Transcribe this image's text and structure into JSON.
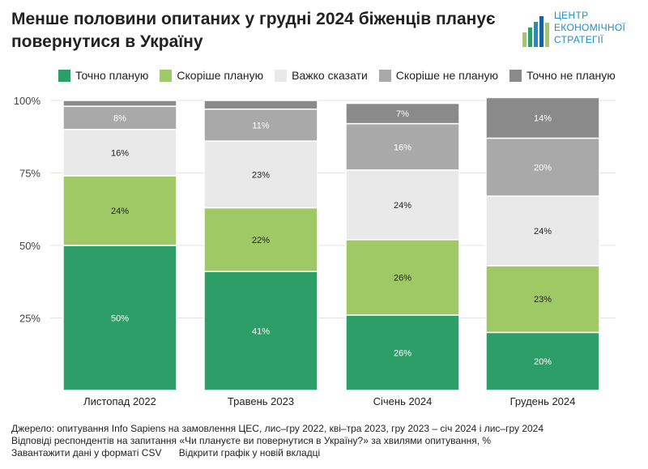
{
  "header": {
    "title": "Менше половини опитаних у грудні 2024 біженців планує повернутися в Україну"
  },
  "logo": {
    "lines": [
      "ЦЕНТР",
      "ЕКОНОМІЧНОЇ",
      "СТРАТЕГІЇ"
    ]
  },
  "footer": {
    "source": "Джерело: опитування Info Sapiens на замовлення ЦЕС, лис–гру 2022, кві–тра 2023, гру 2023 – січ 2024 і лис–гру 2024",
    "note": "Відповіді респондентів на запитання «Чи плануєте ви повернутися в Україну?» за хвилями опитування, %",
    "link_csv": "Завантажити дані у форматі CSV",
    "link_open": "Відкрити графік у новій вкладці"
  },
  "chart_data": {
    "type": "bar",
    "stacked": true,
    "categories": [
      "Листопад 2022",
      "Травень 2023",
      "Січень 2024",
      "Грудень 2024"
    ],
    "series": [
      {
        "name": "Точно планую",
        "color": "#2e9e68",
        "values": [
          50,
          41,
          26,
          20
        ],
        "labels": [
          "50%",
          "41%",
          "26%",
          "20%"
        ]
      },
      {
        "name": "Скоріше планую",
        "color": "#9fc964",
        "values": [
          24,
          22,
          26,
          23
        ],
        "labels": [
          "24%",
          "22%",
          "26%",
          "23%"
        ]
      },
      {
        "name": "Важко сказати",
        "color": "#e9e9e9",
        "values": [
          16,
          23,
          24,
          24
        ],
        "labels": [
          "16%",
          "23%",
          "24%",
          "24%"
        ]
      },
      {
        "name": "Скоріше не планую",
        "color": "#a9a9a9",
        "values": [
          8,
          11,
          16,
          20
        ],
        "labels": [
          "8%",
          "11%",
          "16%",
          "20%"
        ]
      },
      {
        "name": "Точно не планую",
        "color": "#8a8a8a",
        "values": [
          2,
          3,
          7,
          14
        ],
        "labels": [
          "",
          "",
          "7%",
          "14%"
        ]
      }
    ],
    "yticks": [
      25,
      50,
      75,
      100
    ],
    "ytick_labels": [
      "25%",
      "50%",
      "75%",
      "100%"
    ],
    "ylim": [
      0,
      100
    ],
    "grid": true,
    "legend": "top"
  }
}
